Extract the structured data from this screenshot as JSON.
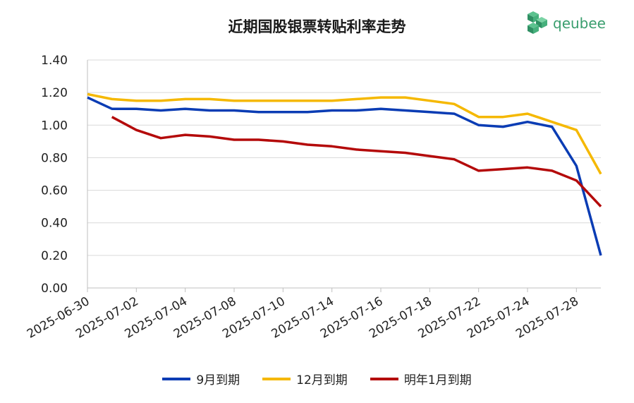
{
  "chart_data": {
    "type": "line",
    "title": "近期国股银票转贴利率走势",
    "xlabel": "",
    "ylabel": "",
    "ylim": [
      0,
      1.4
    ],
    "yticks": [
      "0.00",
      "0.20",
      "0.40",
      "0.60",
      "0.80",
      "1.00",
      "1.20",
      "1.40"
    ],
    "x": [
      "2025-06-30",
      "2025-07-01",
      "2025-07-02",
      "2025-07-03",
      "2025-07-04",
      "2025-07-07",
      "2025-07-08",
      "2025-07-09",
      "2025-07-10",
      "2025-07-11",
      "2025-07-14",
      "2025-07-15",
      "2025-07-16",
      "2025-07-17",
      "2025-07-18",
      "2025-07-21",
      "2025-07-22",
      "2025-07-23",
      "2025-07-24",
      "2025-07-25",
      "2025-07-28",
      "2025-07-29"
    ],
    "x_tick_labels": [
      "2025-06-30",
      "2025-07-02",
      "2025-07-04",
      "2025-07-08",
      "2025-07-10",
      "2025-07-14",
      "2025-07-16",
      "2025-07-18",
      "2025-07-22",
      "2025-07-24",
      "2025-07-28"
    ],
    "series": [
      {
        "name": "9月到期",
        "color": "#0a3cb4",
        "values": [
          1.17,
          1.1,
          1.1,
          1.09,
          1.1,
          1.09,
          1.09,
          1.08,
          1.08,
          1.08,
          1.09,
          1.09,
          1.1,
          1.09,
          1.08,
          1.07,
          1.0,
          0.99,
          1.02,
          0.99,
          0.75,
          0.2
        ]
      },
      {
        "name": "12月到期",
        "color": "#f5b800",
        "values": [
          1.19,
          1.16,
          1.15,
          1.15,
          1.16,
          1.16,
          1.15,
          1.15,
          1.15,
          1.15,
          1.15,
          1.16,
          1.17,
          1.17,
          1.15,
          1.13,
          1.05,
          1.05,
          1.07,
          1.02,
          0.97,
          0.7
        ]
      },
      {
        "name": "明年1月到期",
        "color": "#b40a0a",
        "values": [
          null,
          1.05,
          0.97,
          0.92,
          0.94,
          0.93,
          0.91,
          0.91,
          0.9,
          0.88,
          0.87,
          0.85,
          0.84,
          0.83,
          0.81,
          0.79,
          0.72,
          0.73,
          0.74,
          0.72,
          0.66,
          0.5
        ]
      }
    ],
    "grid": true,
    "legend_position": "bottom"
  },
  "logo": {
    "text": "qeubee",
    "icon": "cube-cluster-icon",
    "color": "#3a9e6e"
  }
}
